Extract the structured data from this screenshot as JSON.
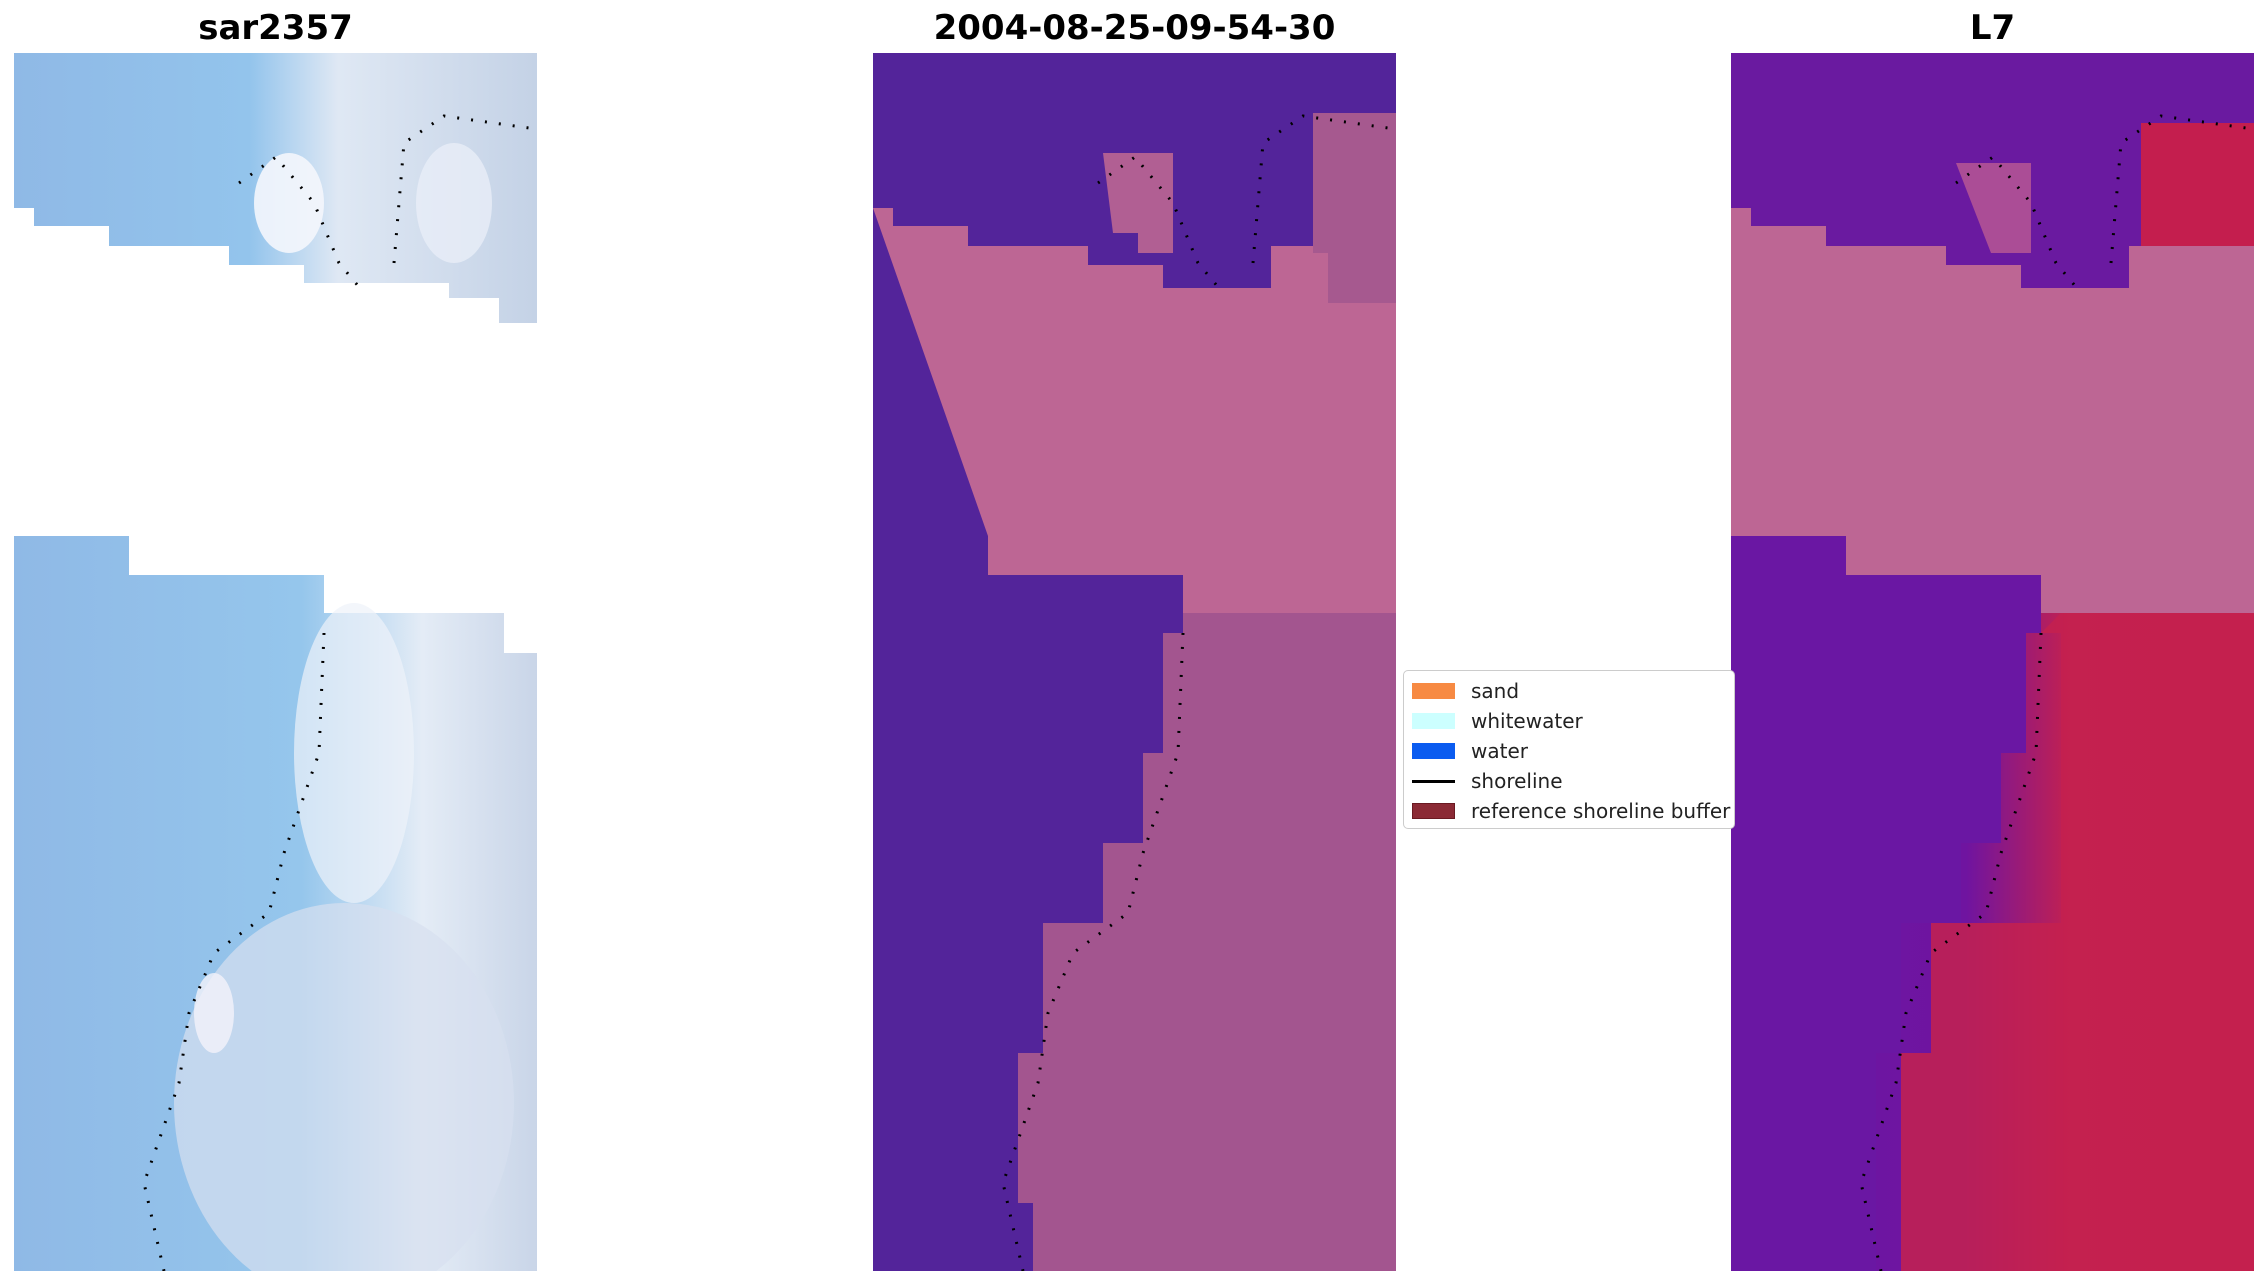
{
  "panels": [
    {
      "title": "sar2357",
      "kind": "rgb"
    },
    {
      "title": "2004-08-25-09-54-30",
      "kind": "classified"
    },
    {
      "title": "L7",
      "kind": "index"
    }
  ],
  "legend": {
    "items": [
      {
        "label": "sand",
        "type": "patch",
        "color": "#f78a43"
      },
      {
        "label": "whitewater",
        "type": "patch",
        "color": "#ccffff"
      },
      {
        "label": "water",
        "type": "patch",
        "color": "#0b5cf0"
      },
      {
        "label": "shoreline",
        "type": "line",
        "color": "#000000"
      },
      {
        "label": "reference shoreline buffer",
        "type": "patch",
        "color": "#8b2a35"
      }
    ]
  },
  "colors": {
    "sea_dark": "#53249a",
    "buffer_pink": "#bd6694",
    "rgb_water": "#8cbfe8",
    "rgb_white": "#e8eef8",
    "index_purple": "#6a17a3",
    "index_red": "#c4214f"
  }
}
